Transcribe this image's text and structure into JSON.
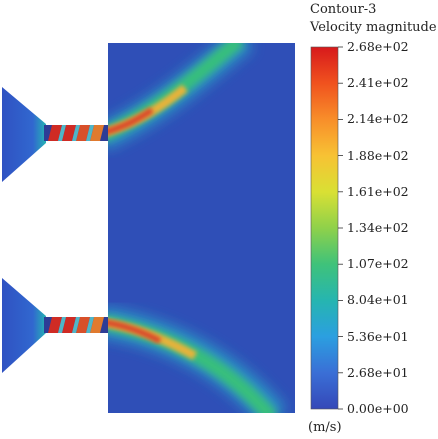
{
  "legend": {
    "title": "Contour-3",
    "subtitle": "Velocity magnitude",
    "unit": "(m/s)",
    "ticks": [
      "2.68e+02",
      "2.41e+02",
      "2.14e+02",
      "1.88e+02",
      "1.61e+02",
      "1.34e+02",
      "1.07e+02",
      "8.04e+01",
      "5.36e+01",
      "2.68e+01",
      "0.00e+00"
    ],
    "colormap": [
      "#d7191c",
      "#f0521e",
      "#f88e2a",
      "#f7c234",
      "#d9e034",
      "#8fd14a",
      "#3fc27a",
      "#26b5b0",
      "#2b9fe0",
      "#3a6fd6",
      "#3548b8"
    ]
  },
  "colors": {
    "domain_background": "#2f4fb7",
    "jet_core": "#d7352a",
    "jet_edge": "#3fc27a"
  }
}
